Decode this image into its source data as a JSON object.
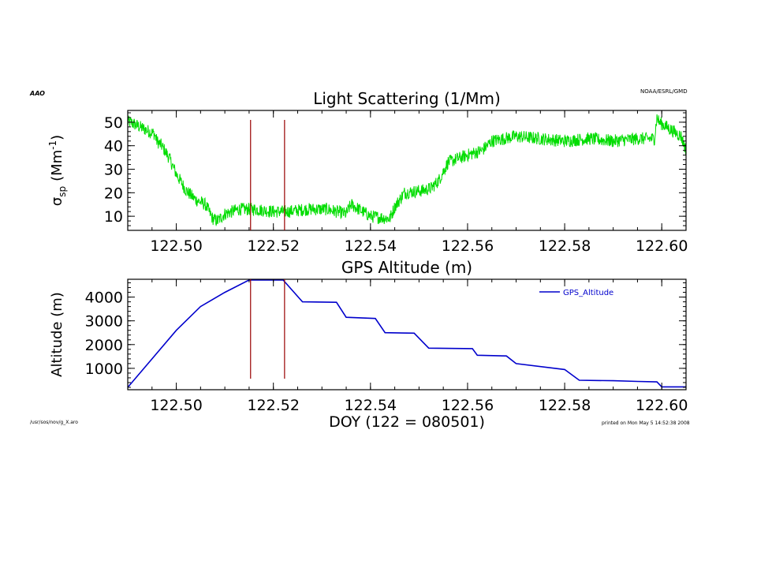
{
  "figure": {
    "top_left_label": "AAO",
    "top_right_label": "NOAA/ESRL/GMD",
    "bottom_left_label": "/usr/sos/nov/g_X.aro",
    "bottom_right_label": "printed on Mon May 5 14:52:38 2008",
    "xlabel": "DOY (122 = 080501)",
    "marker_lines_doy": [
      122.5153,
      122.5223
    ],
    "marker_color": "#990000"
  },
  "chart_data": [
    {
      "type": "line",
      "title": "Light Scattering (1/Mm)",
      "ylabel_symbol": "σ",
      "ylabel_subscript": "sp",
      "ylabel_units": "(Mm",
      "ylabel_exponent": "-1",
      "ylabel_close": ")",
      "xlim": [
        122.49,
        122.605
      ],
      "ylim": [
        4,
        55
      ],
      "xticks": [
        122.5,
        122.52,
        122.54,
        122.56,
        122.58,
        122.6
      ],
      "xtick_labels": [
        "122.50",
        "122.52",
        "122.54",
        "122.56",
        "122.58",
        "122.60"
      ],
      "yticks": [
        10,
        20,
        30,
        40,
        50
      ],
      "ytick_labels": [
        "10",
        "20",
        "30",
        "40",
        "50"
      ],
      "noisy": true,
      "series": [
        {
          "color": "#00dd00",
          "x": [
            122.49,
            122.4905,
            122.4955,
            122.496,
            122.497,
            122.4985,
            122.5,
            122.502,
            122.504,
            122.506,
            122.5075,
            122.5085,
            122.51,
            122.513,
            122.516,
            122.52,
            122.523,
            122.527,
            122.531,
            122.533,
            122.535,
            122.536,
            122.54,
            122.544,
            122.545,
            122.547,
            122.551,
            122.5525,
            122.554,
            122.556,
            122.56,
            122.563,
            122.565,
            122.57,
            122.575,
            122.58,
            122.585,
            122.59,
            122.595,
            122.5985,
            122.599,
            122.5995,
            122.604,
            122.605
          ],
          "y": [
            50,
            50,
            45,
            42,
            40,
            35,
            28,
            21,
            17,
            15,
            9,
            8,
            11,
            13,
            13,
            12,
            12,
            13,
            13,
            12,
            11,
            15,
            10,
            9,
            14,
            20,
            21,
            22,
            25,
            33,
            36,
            38,
            42,
            44,
            43,
            42,
            43,
            42,
            43,
            43,
            52,
            50,
            44,
            38
          ]
        }
      ]
    },
    {
      "type": "line",
      "title": "GPS Altitude (m)",
      "ylabel": "Altitude (m)",
      "xlim": [
        122.49,
        122.605
      ],
      "ylim": [
        100,
        4750
      ],
      "xticks": [
        122.5,
        122.52,
        122.54,
        122.56,
        122.58,
        122.6
      ],
      "xtick_labels": [
        "122.50",
        "122.52",
        "122.54",
        "122.56",
        "122.58",
        "122.60"
      ],
      "yticks": [
        1000,
        2000,
        3000,
        4000
      ],
      "ytick_labels": [
        "1000",
        "2000",
        "3000",
        "4000"
      ],
      "legend": "top-right",
      "series": [
        {
          "name": "GPS_Altitude",
          "color": "#0000cc",
          "x": [
            122.49,
            122.495,
            122.5,
            122.505,
            122.51,
            122.515,
            122.522,
            122.526,
            122.533,
            122.535,
            122.541,
            122.543,
            122.549,
            122.552,
            122.561,
            122.562,
            122.568,
            122.57,
            122.58,
            122.583,
            122.59,
            122.595,
            122.599,
            122.6,
            122.605
          ],
          "y": [
            200,
            1400,
            2600,
            3600,
            4200,
            4720,
            4720,
            3800,
            3780,
            3150,
            3100,
            2500,
            2480,
            1850,
            1830,
            1550,
            1520,
            1200,
            950,
            500,
            480,
            450,
            430,
            220,
            220
          ]
        }
      ]
    }
  ]
}
